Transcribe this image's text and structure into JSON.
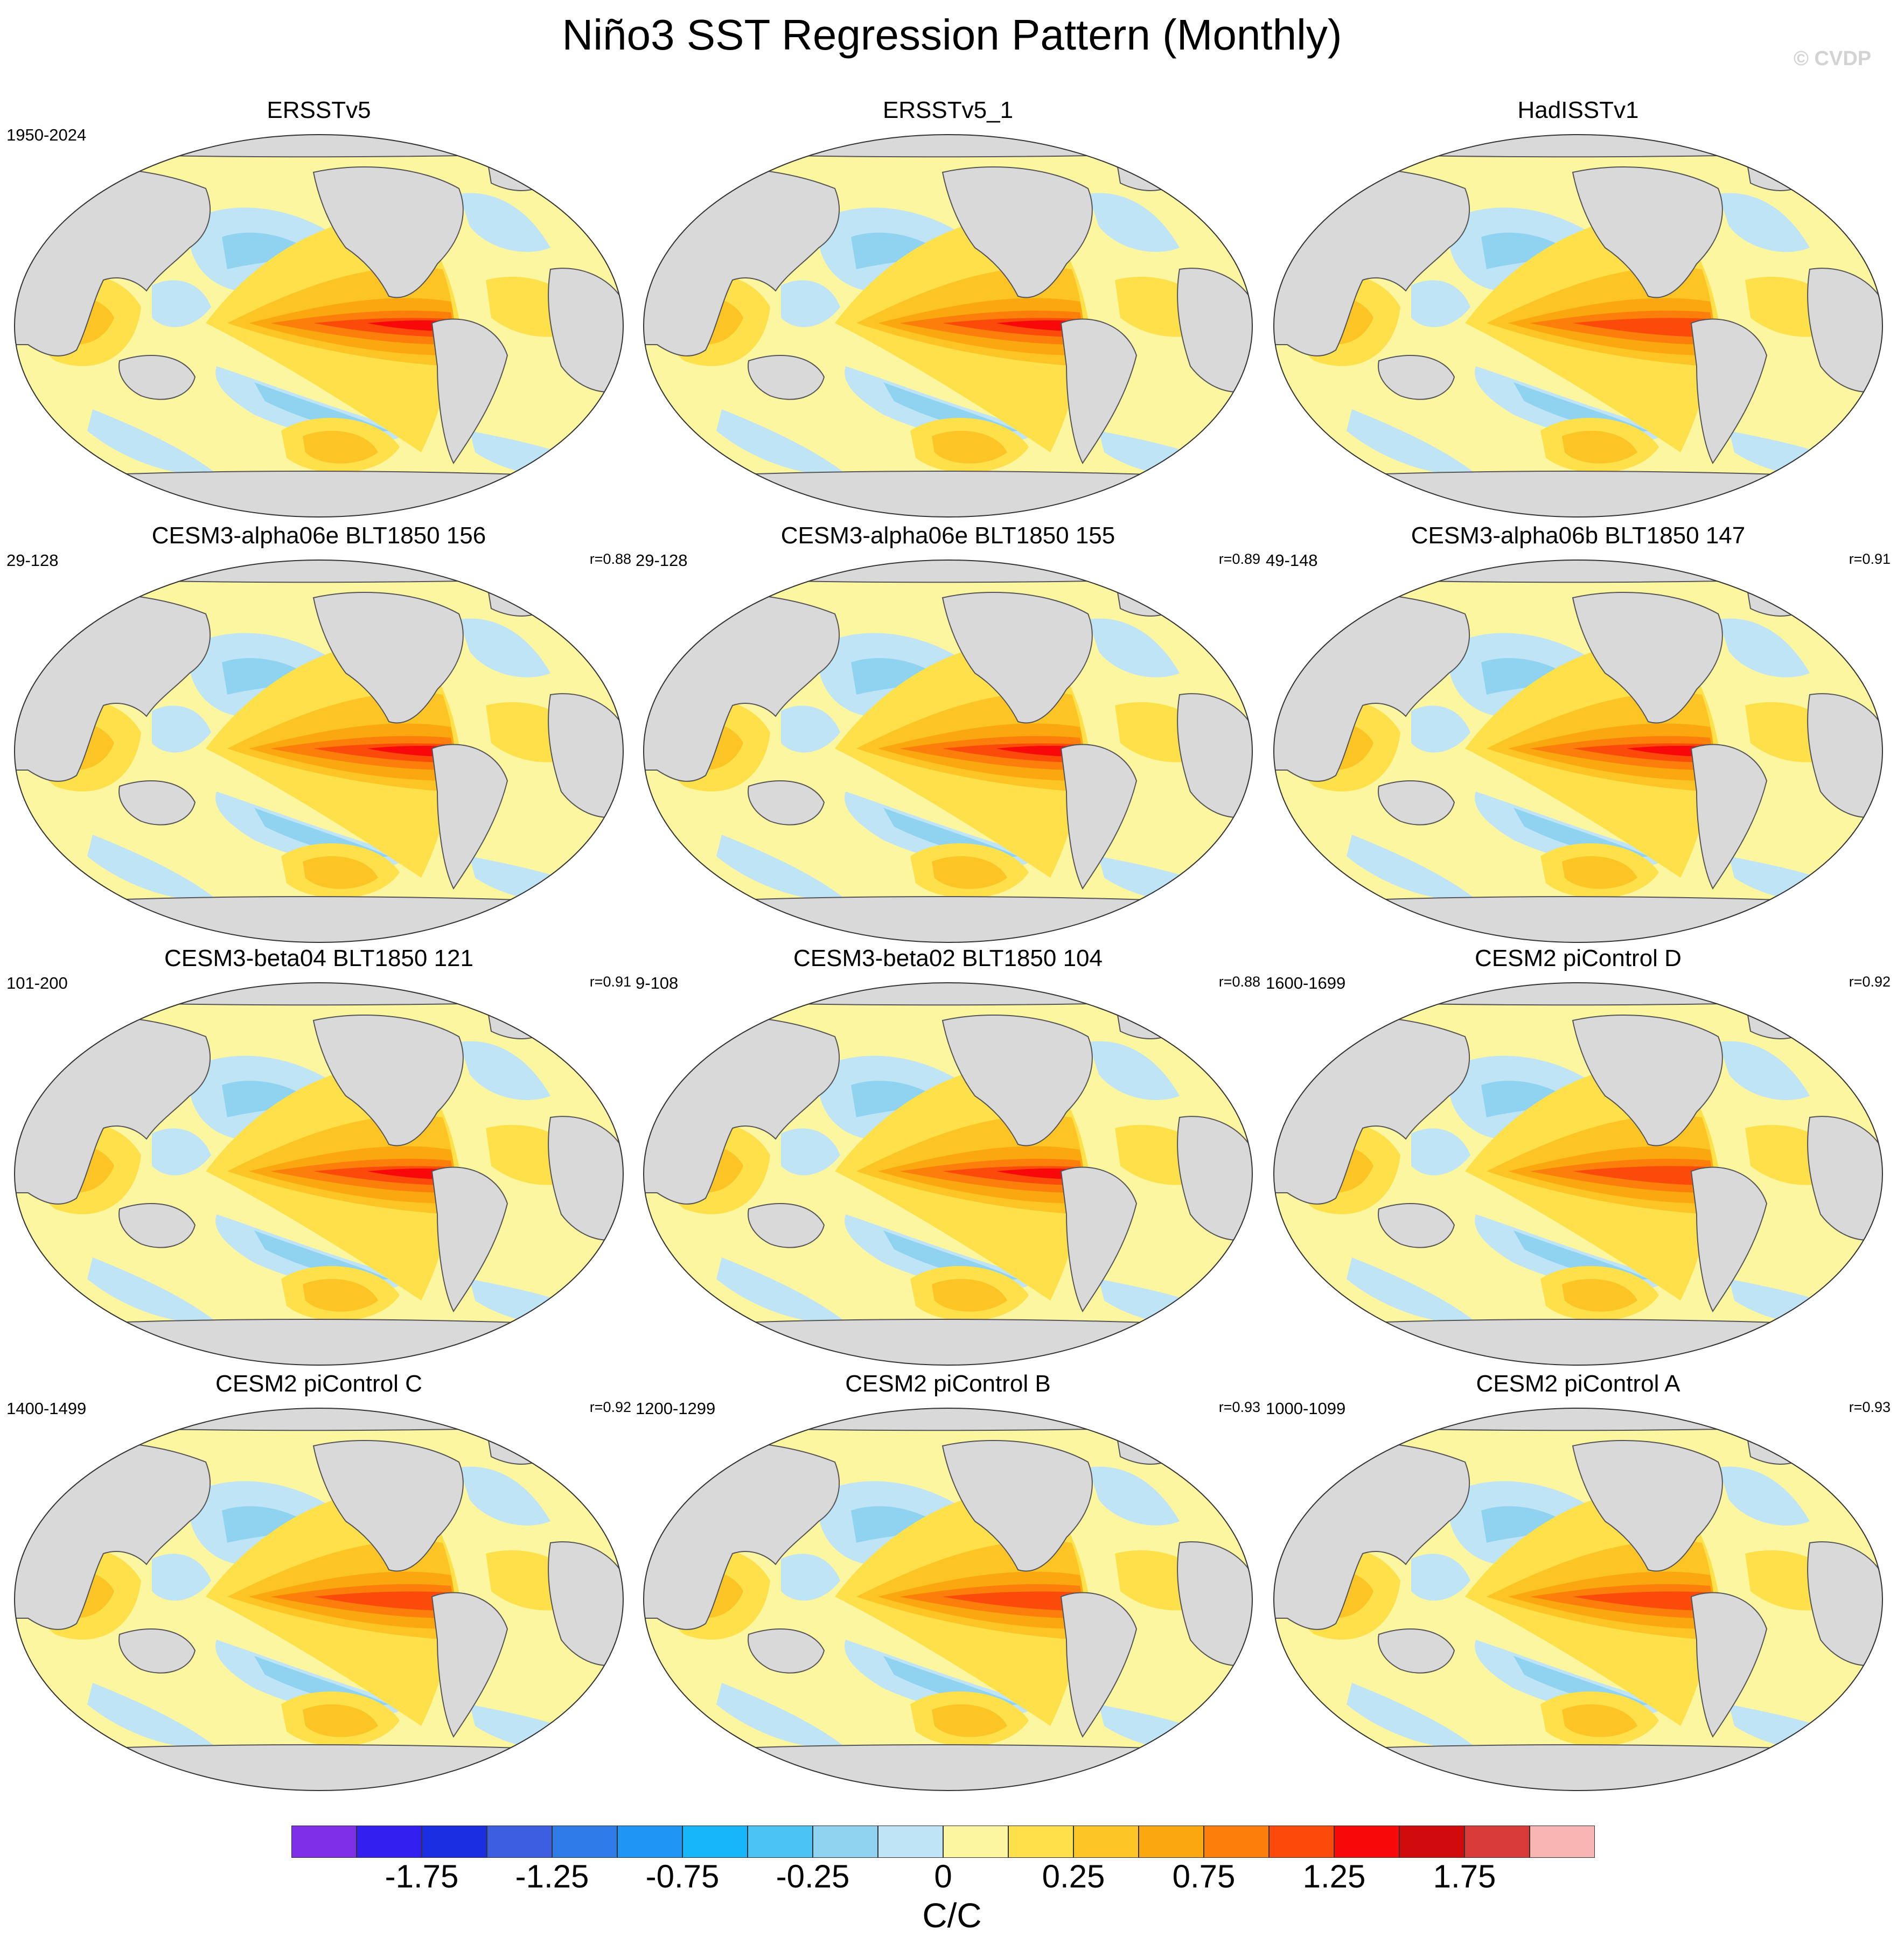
{
  "title": "Niño3 SST Regression Pattern (Monthly)",
  "credit": "© CVDP",
  "panels": [
    {
      "title": "ERSSTv5",
      "period": "1950-2024",
      "r": ""
    },
    {
      "title": "ERSSTv5_1",
      "period": "",
      "r": ""
    },
    {
      "title": "HadISSTv1",
      "period": "",
      "r": ""
    },
    {
      "title": "CESM3-alpha06e BLT1850 156",
      "period": "29-128",
      "r": "r=0.88"
    },
    {
      "title": "CESM3-alpha06e BLT1850 155",
      "period": "29-128",
      "r": "r=0.89"
    },
    {
      "title": "CESM3-alpha06b BLT1850 147",
      "period": "49-148",
      "r": "r=0.91"
    },
    {
      "title": "CESM3-beta04 BLT1850 121",
      "period": "101-200",
      "r": "r=0.91"
    },
    {
      "title": "CESM3-beta02 BLT1850 104",
      "period": "9-108",
      "r": "r=0.88"
    },
    {
      "title": "CESM2 piControl D",
      "period": "1600-1699",
      "r": "r=0.92"
    },
    {
      "title": "CESM2 piControl C",
      "period": "1400-1499",
      "r": "r=0.92"
    },
    {
      "title": "CESM2 piControl B",
      "period": "1200-1299",
      "r": "r=0.93"
    },
    {
      "title": "CESM2 piControl A",
      "period": "1000-1099",
      "r": "r=0.93"
    }
  ],
  "colorbar": {
    "colors": [
      "#7f2fe8",
      "#3320f0",
      "#1a2ee0",
      "#3b5fe0",
      "#2f7be8",
      "#1f96f5",
      "#16b4f8",
      "#4cc3f5",
      "#8fd3f0",
      "#bfe4f6",
      "#fdf6a0",
      "#fde04a",
      "#fcc425",
      "#fba70f",
      "#fb7f0a",
      "#fb4a0a",
      "#f80808",
      "#d00a0a",
      "#d83a3a",
      "#f9b4b4"
    ],
    "ticks": [
      "-1.75",
      "-1.25",
      "-0.75",
      "-0.25",
      "0",
      "0.25",
      "0.75",
      "1.25",
      "1.75"
    ],
    "unit": "C/C"
  },
  "legend": {
    "land": "#d9d9d9",
    "positive": "#fde04a",
    "negative": "#bfe4f6"
  }
}
